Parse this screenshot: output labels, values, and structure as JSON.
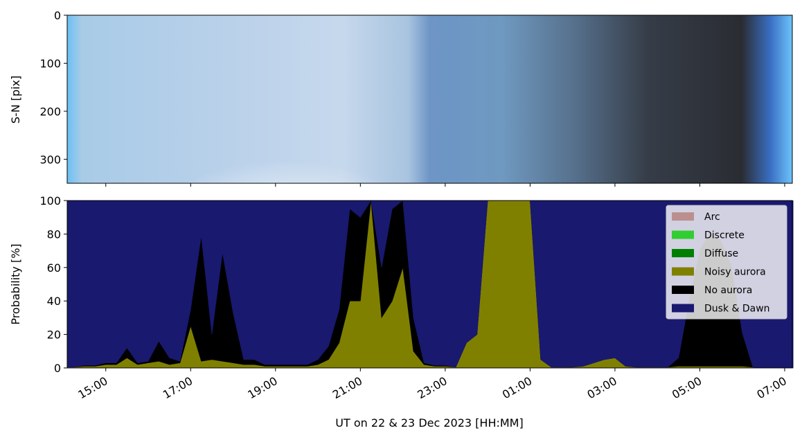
{
  "chart_data": [
    {
      "type": "image",
      "ylabel": "S-N [pix]",
      "ylim": [
        350,
        0
      ],
      "yticks": [
        0,
        100,
        200,
        300
      ]
    },
    {
      "type": "stacked_area",
      "xlabel": "UT on 22 & 23 Dec 2023 [HH:MM]",
      "ylabel": "Probability [%]",
      "xlim": [
        14.09,
        31.18
      ],
      "xticks": [
        {
          "value": 15,
          "label": "15:00"
        },
        {
          "value": 17,
          "label": "17:00"
        },
        {
          "value": 19,
          "label": "19:00"
        },
        {
          "value": 21,
          "label": "21:00"
        },
        {
          "value": 23,
          "label": "23:00"
        },
        {
          "value": 25,
          "label": "01:00"
        },
        {
          "value": 27,
          "label": "03:00"
        },
        {
          "value": 29,
          "label": "05:00"
        },
        {
          "value": 31,
          "label": "07:00"
        }
      ],
      "ylim": [
        0,
        100
      ],
      "yticks": [
        0,
        20,
        40,
        60,
        80,
        100
      ],
      "legend": "upper right",
      "x": [
        14.1,
        14.25,
        14.5,
        14.75,
        15,
        15.25,
        15.5,
        15.75,
        16,
        16.25,
        16.5,
        16.75,
        17,
        17.25,
        17.5,
        17.75,
        18,
        18.25,
        18.5,
        18.75,
        19,
        19.25,
        19.5,
        19.75,
        20,
        20.25,
        20.5,
        20.75,
        21,
        21.25,
        21.5,
        21.75,
        22,
        22.25,
        22.5,
        22.75,
        23,
        23.25,
        23.5,
        23.75,
        24,
        24.25,
        24.5,
        24.75,
        25,
        25.25,
        25.5,
        25.75,
        26,
        26.25,
        26.5,
        26.75,
        27,
        27.25,
        27.5,
        27.75,
        28,
        28.25,
        28.5,
        28.75,
        29,
        29.25,
        29.5,
        29.75,
        30,
        30.25,
        30.5,
        30.75,
        31,
        31.2
      ],
      "series": [
        {
          "name": "Arc",
          "color": "#bc8f8f",
          "values": [
            0,
            0,
            0,
            0,
            0,
            0,
            0,
            0,
            0,
            0,
            0,
            0,
            0,
            0,
            0,
            0,
            0,
            0,
            0,
            0,
            0,
            0,
            0,
            0,
            0,
            0,
            0,
            0,
            0,
            0,
            0,
            0,
            0,
            0,
            0,
            0,
            0,
            0,
            0,
            0,
            0,
            0,
            0,
            0,
            0,
            0,
            0,
            0,
            0,
            0,
            0,
            0,
            0,
            0,
            0,
            0,
            0,
            0,
            0,
            0,
            0,
            0,
            0,
            0,
            0,
            0,
            0,
            0,
            0,
            0
          ]
        },
        {
          "name": "Discrete",
          "color": "#32cd32",
          "values": [
            0,
            0,
            0,
            0,
            0,
            0,
            0,
            0,
            0,
            0,
            0,
            0,
            0,
            0,
            0,
            0,
            0,
            0,
            0,
            0,
            0,
            0,
            0,
            0,
            0,
            0,
            0,
            0,
            0,
            0,
            0,
            0,
            0,
            0,
            0,
            0,
            0,
            0,
            0,
            0,
            0,
            0,
            0,
            0,
            0,
            0,
            0,
            0,
            0,
            0,
            0,
            0,
            0,
            0,
            0,
            0,
            0,
            0,
            0,
            0,
            0,
            0,
            0,
            0,
            0,
            0,
            0,
            0,
            0,
            0
          ]
        },
        {
          "name": "Diffuse",
          "color": "#008000",
          "values": [
            0,
            0,
            0,
            0,
            0,
            0,
            0,
            0,
            0,
            0,
            0,
            0,
            0,
            0,
            0,
            0,
            0,
            0,
            0,
            0,
            0,
            0,
            0,
            0,
            0,
            0,
            0,
            0,
            0,
            0,
            0,
            0,
            0,
            0,
            0,
            0,
            0,
            0,
            0,
            0,
            0,
            0,
            0,
            0,
            0,
            0,
            0,
            0,
            0,
            0,
            0,
            0,
            0,
            0,
            0,
            0,
            0,
            0,
            0,
            0,
            0,
            0,
            0,
            0,
            0,
            0,
            0,
            0,
            0,
            0
          ]
        },
        {
          "name": "Noisy aurora",
          "color": "#808000",
          "values": [
            0.5,
            0.5,
            1,
            1,
            2,
            2,
            6,
            2,
            3,
            4,
            2,
            3,
            25,
            4,
            5,
            4,
            3,
            2,
            2,
            1,
            1,
            1,
            1,
            1,
            2,
            5,
            15,
            40,
            40,
            100,
            30,
            40,
            60,
            10,
            2,
            1,
            1,
            0.5,
            15,
            20,
            100,
            100,
            100,
            100,
            100,
            5,
            0.5,
            0.5,
            0.5,
            1,
            3,
            5,
            6,
            1,
            0.5,
            0.5,
            0.5,
            0.5,
            1,
            1,
            1,
            1,
            1,
            1,
            1,
            0.5,
            0,
            0,
            0,
            0
          ]
        },
        {
          "name": "No aurora",
          "color": "#000000",
          "values": [
            0,
            0,
            0.5,
            0.5,
            1,
            1,
            6,
            1,
            1,
            12,
            4,
            1,
            10,
            75,
            15,
            65,
            30,
            3,
            3,
            1,
            1,
            1,
            1,
            1,
            3,
            8,
            20,
            55,
            50,
            0,
            30,
            55,
            40,
            20,
            1,
            0.5,
            0.5,
            0,
            0,
            0,
            0,
            0,
            0,
            0,
            0,
            0,
            0,
            0,
            0,
            0,
            0,
            0,
            0,
            0,
            0,
            0,
            0,
            0,
            5,
            40,
            70,
            80,
            75,
            60,
            20,
            0,
            0,
            0,
            0,
            0
          ]
        },
        {
          "name": "Dusk & Dawn",
          "color": "#191970",
          "values": [
            99.5,
            99.5,
            98.5,
            98.5,
            97,
            97,
            88,
            97,
            96,
            84,
            94,
            96,
            65,
            21,
            80,
            31,
            67,
            95,
            95,
            98,
            98,
            98,
            98,
            98,
            95,
            87,
            65,
            5,
            10,
            0,
            40,
            5,
            0,
            70,
            97,
            98.5,
            98.5,
            99.5,
            85,
            80,
            0,
            0,
            0,
            0,
            0,
            95,
            99.5,
            99.5,
            99.5,
            99,
            97,
            95,
            94,
            99,
            99.5,
            99.5,
            99.5,
            99.5,
            94,
            59,
            29,
            19,
            24,
            39,
            79,
            99.5,
            100,
            100,
            100,
            100
          ]
        }
      ]
    }
  ]
}
